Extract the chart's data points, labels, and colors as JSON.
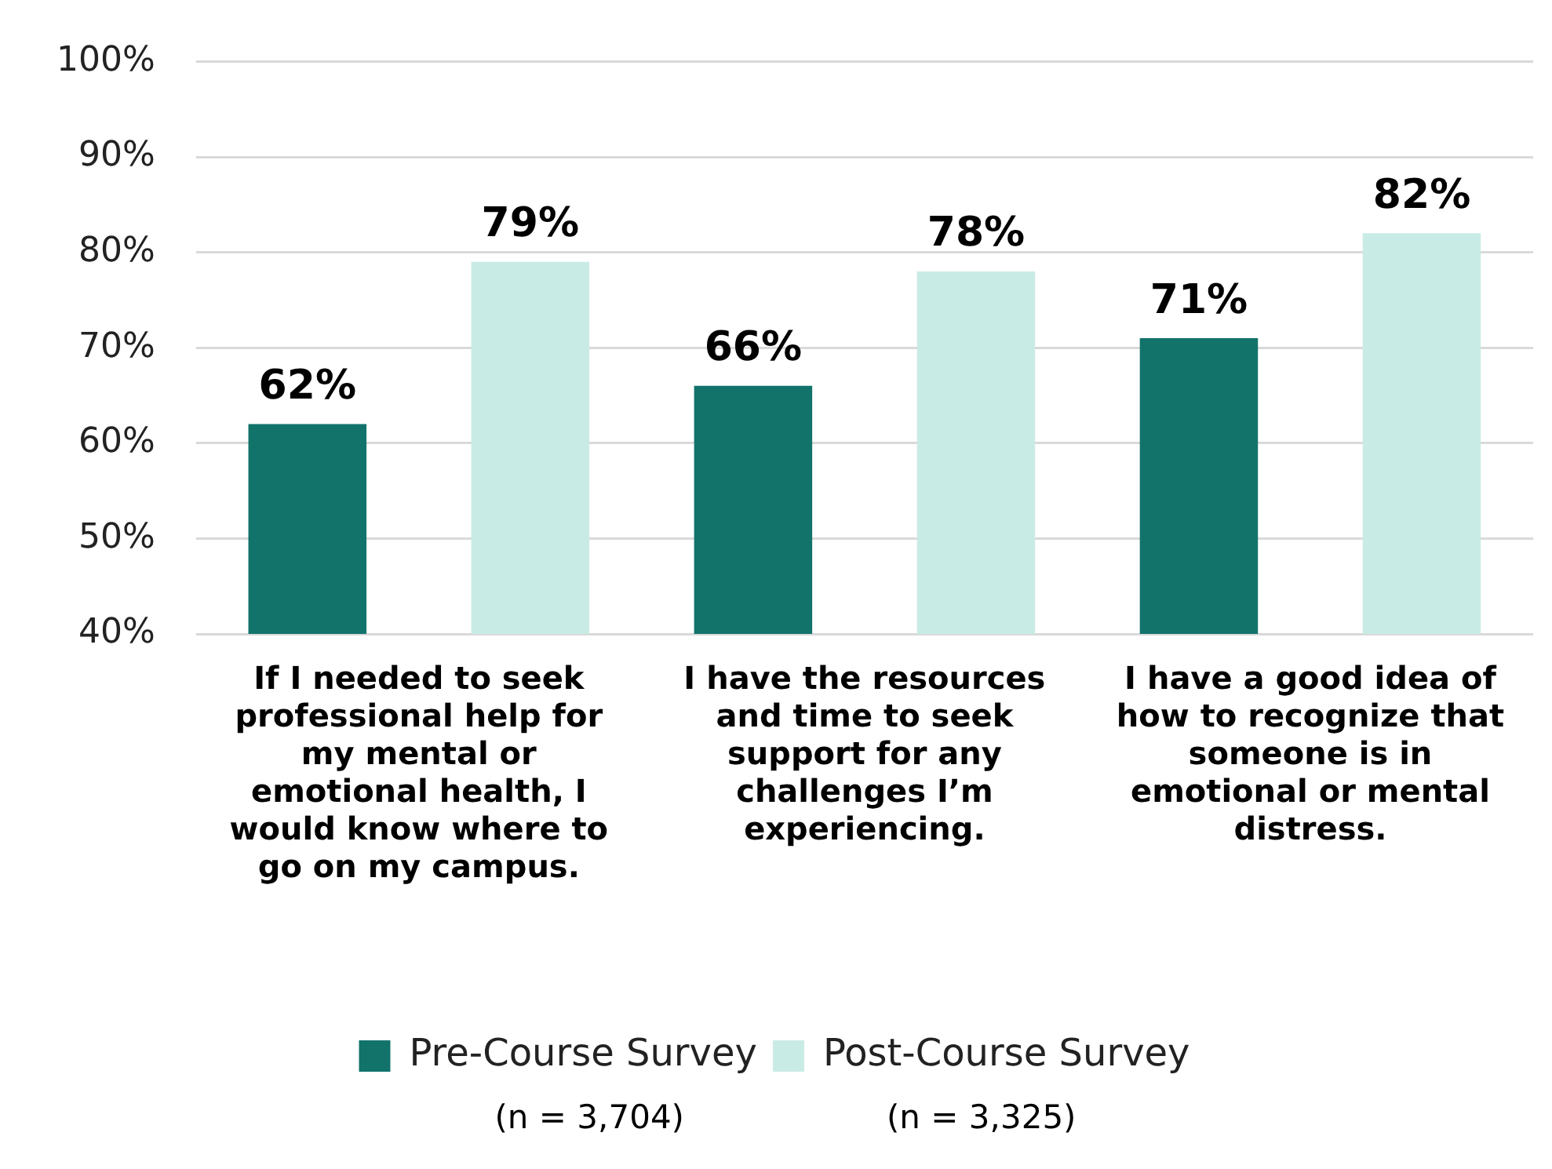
{
  "chart_data": {
    "type": "bar",
    "categories": [
      "If I needed to seek professional help for my mental or emotional health, I would know where to go on my campus.",
      "I have the resources and time to seek support for any challenges I’m experiencing.",
      "I have a good idea of how to recognize that someone is in emotional or mental distress."
    ],
    "series": [
      {
        "name": "Pre-Course Survey",
        "color": "#12736b",
        "values": [
          62,
          66,
          71
        ],
        "value_labels": [
          "62%",
          "66%",
          "71%"
        ]
      },
      {
        "name": "Post-Course Survey",
        "color": "#c9ebe5",
        "values": [
          79,
          78,
          82
        ],
        "value_labels": [
          "79%",
          "78%",
          "82%"
        ]
      }
    ],
    "ylim": [
      40,
      100
    ],
    "yticks": [
      {
        "value": 40,
        "label": "40%"
      },
      {
        "value": 50,
        "label": "50%"
      },
      {
        "value": 60,
        "label": "60%"
      },
      {
        "value": 70,
        "label": "70%"
      },
      {
        "value": 80,
        "label": "80%"
      },
      {
        "value": 90,
        "label": "90%"
      },
      {
        "value": 100,
        "label": "100%"
      }
    ],
    "grid": "y",
    "legend": "bottom",
    "annotations": [
      "(n = 3,704)",
      "(n = 3,325)"
    ]
  }
}
